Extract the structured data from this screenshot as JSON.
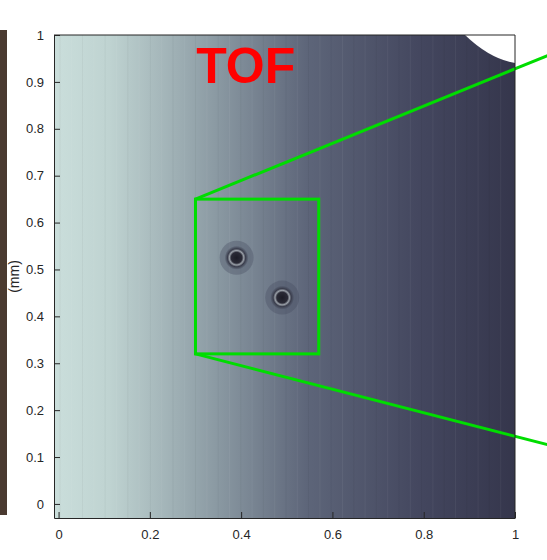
{
  "chart_data": {
    "type": "image",
    "title": "TOF",
    "y_label": "(mm)",
    "xlim": [
      -0.01,
      1
    ],
    "ylim": [
      -0.03,
      1
    ],
    "xticks": [
      0,
      0.2,
      0.4,
      0.6,
      0.8,
      1
    ],
    "yticks": [
      0,
      0.1,
      0.2,
      0.3,
      0.4,
      0.5,
      0.6,
      0.7,
      0.8,
      0.9,
      1
    ],
    "zoom_box": {
      "x": [
        0.3,
        0.57
      ],
      "y": [
        0.32,
        0.65
      ],
      "color": "#00dd00"
    },
    "pits": {
      "x": [
        0.39,
        0.49
      ],
      "y": [
        0.525,
        0.44
      ]
    }
  }
}
